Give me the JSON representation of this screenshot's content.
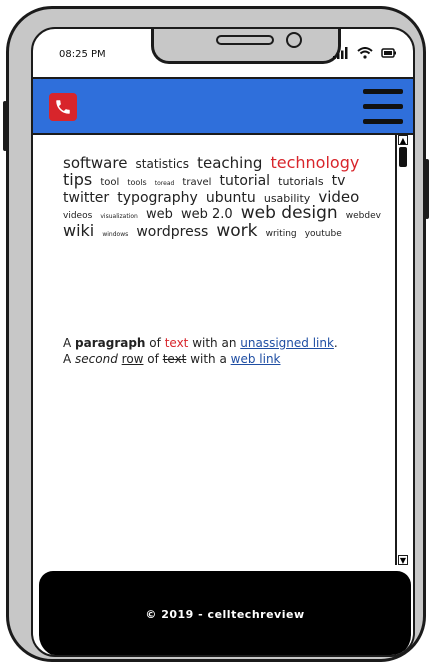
{
  "status_bar": {
    "time": "08:25 PM"
  },
  "colors": {
    "header": "#2f6fdb",
    "accent_red": "#d8252b",
    "footer": "#000000"
  },
  "header": {
    "left_icon": "phone-icon",
    "right_icon": "hamburger-menu-icon"
  },
  "tag_cloud": [
    {
      "text": "software",
      "size": 15
    },
    {
      "text": "statistics",
      "size": 12
    },
    {
      "text": "teaching",
      "size": 15
    },
    {
      "text": "technology",
      "size": 16,
      "color": "#d8252b"
    },
    {
      "text": "tips",
      "size": 16
    },
    {
      "text": "tool",
      "size": 10
    },
    {
      "text": "tools",
      "size": 8
    },
    {
      "text": "toread",
      "size": 6
    },
    {
      "text": "travel",
      "size": 10
    },
    {
      "text": "tutorial",
      "size": 14
    },
    {
      "text": "tutorials",
      "size": 11
    },
    {
      "text": "tv",
      "size": 14
    },
    {
      "text": "twitter",
      "size": 14
    },
    {
      "text": "typography",
      "size": 14
    },
    {
      "text": "ubuntu",
      "size": 14
    },
    {
      "text": "usability",
      "size": 11
    },
    {
      "text": "video",
      "size": 15
    },
    {
      "text": "videos",
      "size": 9
    },
    {
      "text": "visualization",
      "size": 6
    },
    {
      "text": "web",
      "size": 13
    },
    {
      "text": "web 2.0",
      "size": 13
    },
    {
      "text": "web design",
      "size": 17
    },
    {
      "text": "webdev",
      "size": 9
    },
    {
      "text": "wiki",
      "size": 16
    },
    {
      "text": "windows",
      "size": 6
    },
    {
      "text": "wordpress",
      "size": 14
    },
    {
      "text": "work",
      "size": 17
    },
    {
      "text": "writing",
      "size": 9
    },
    {
      "text": "youtube",
      "size": 9
    }
  ],
  "paragraph": {
    "line1": {
      "p1": "A ",
      "bold": "paragraph",
      "p2": " of ",
      "red": "text",
      "p3": " with an ",
      "link": "unassigned link",
      "p4": "."
    },
    "line2": {
      "p1": "A ",
      "italic": "second",
      "p2": " ",
      "underline": "row",
      "p3": " of ",
      "strike": "text",
      "p4": " with a ",
      "link": "web link"
    }
  },
  "footer": {
    "text": "© 2019 - celltechreview"
  }
}
